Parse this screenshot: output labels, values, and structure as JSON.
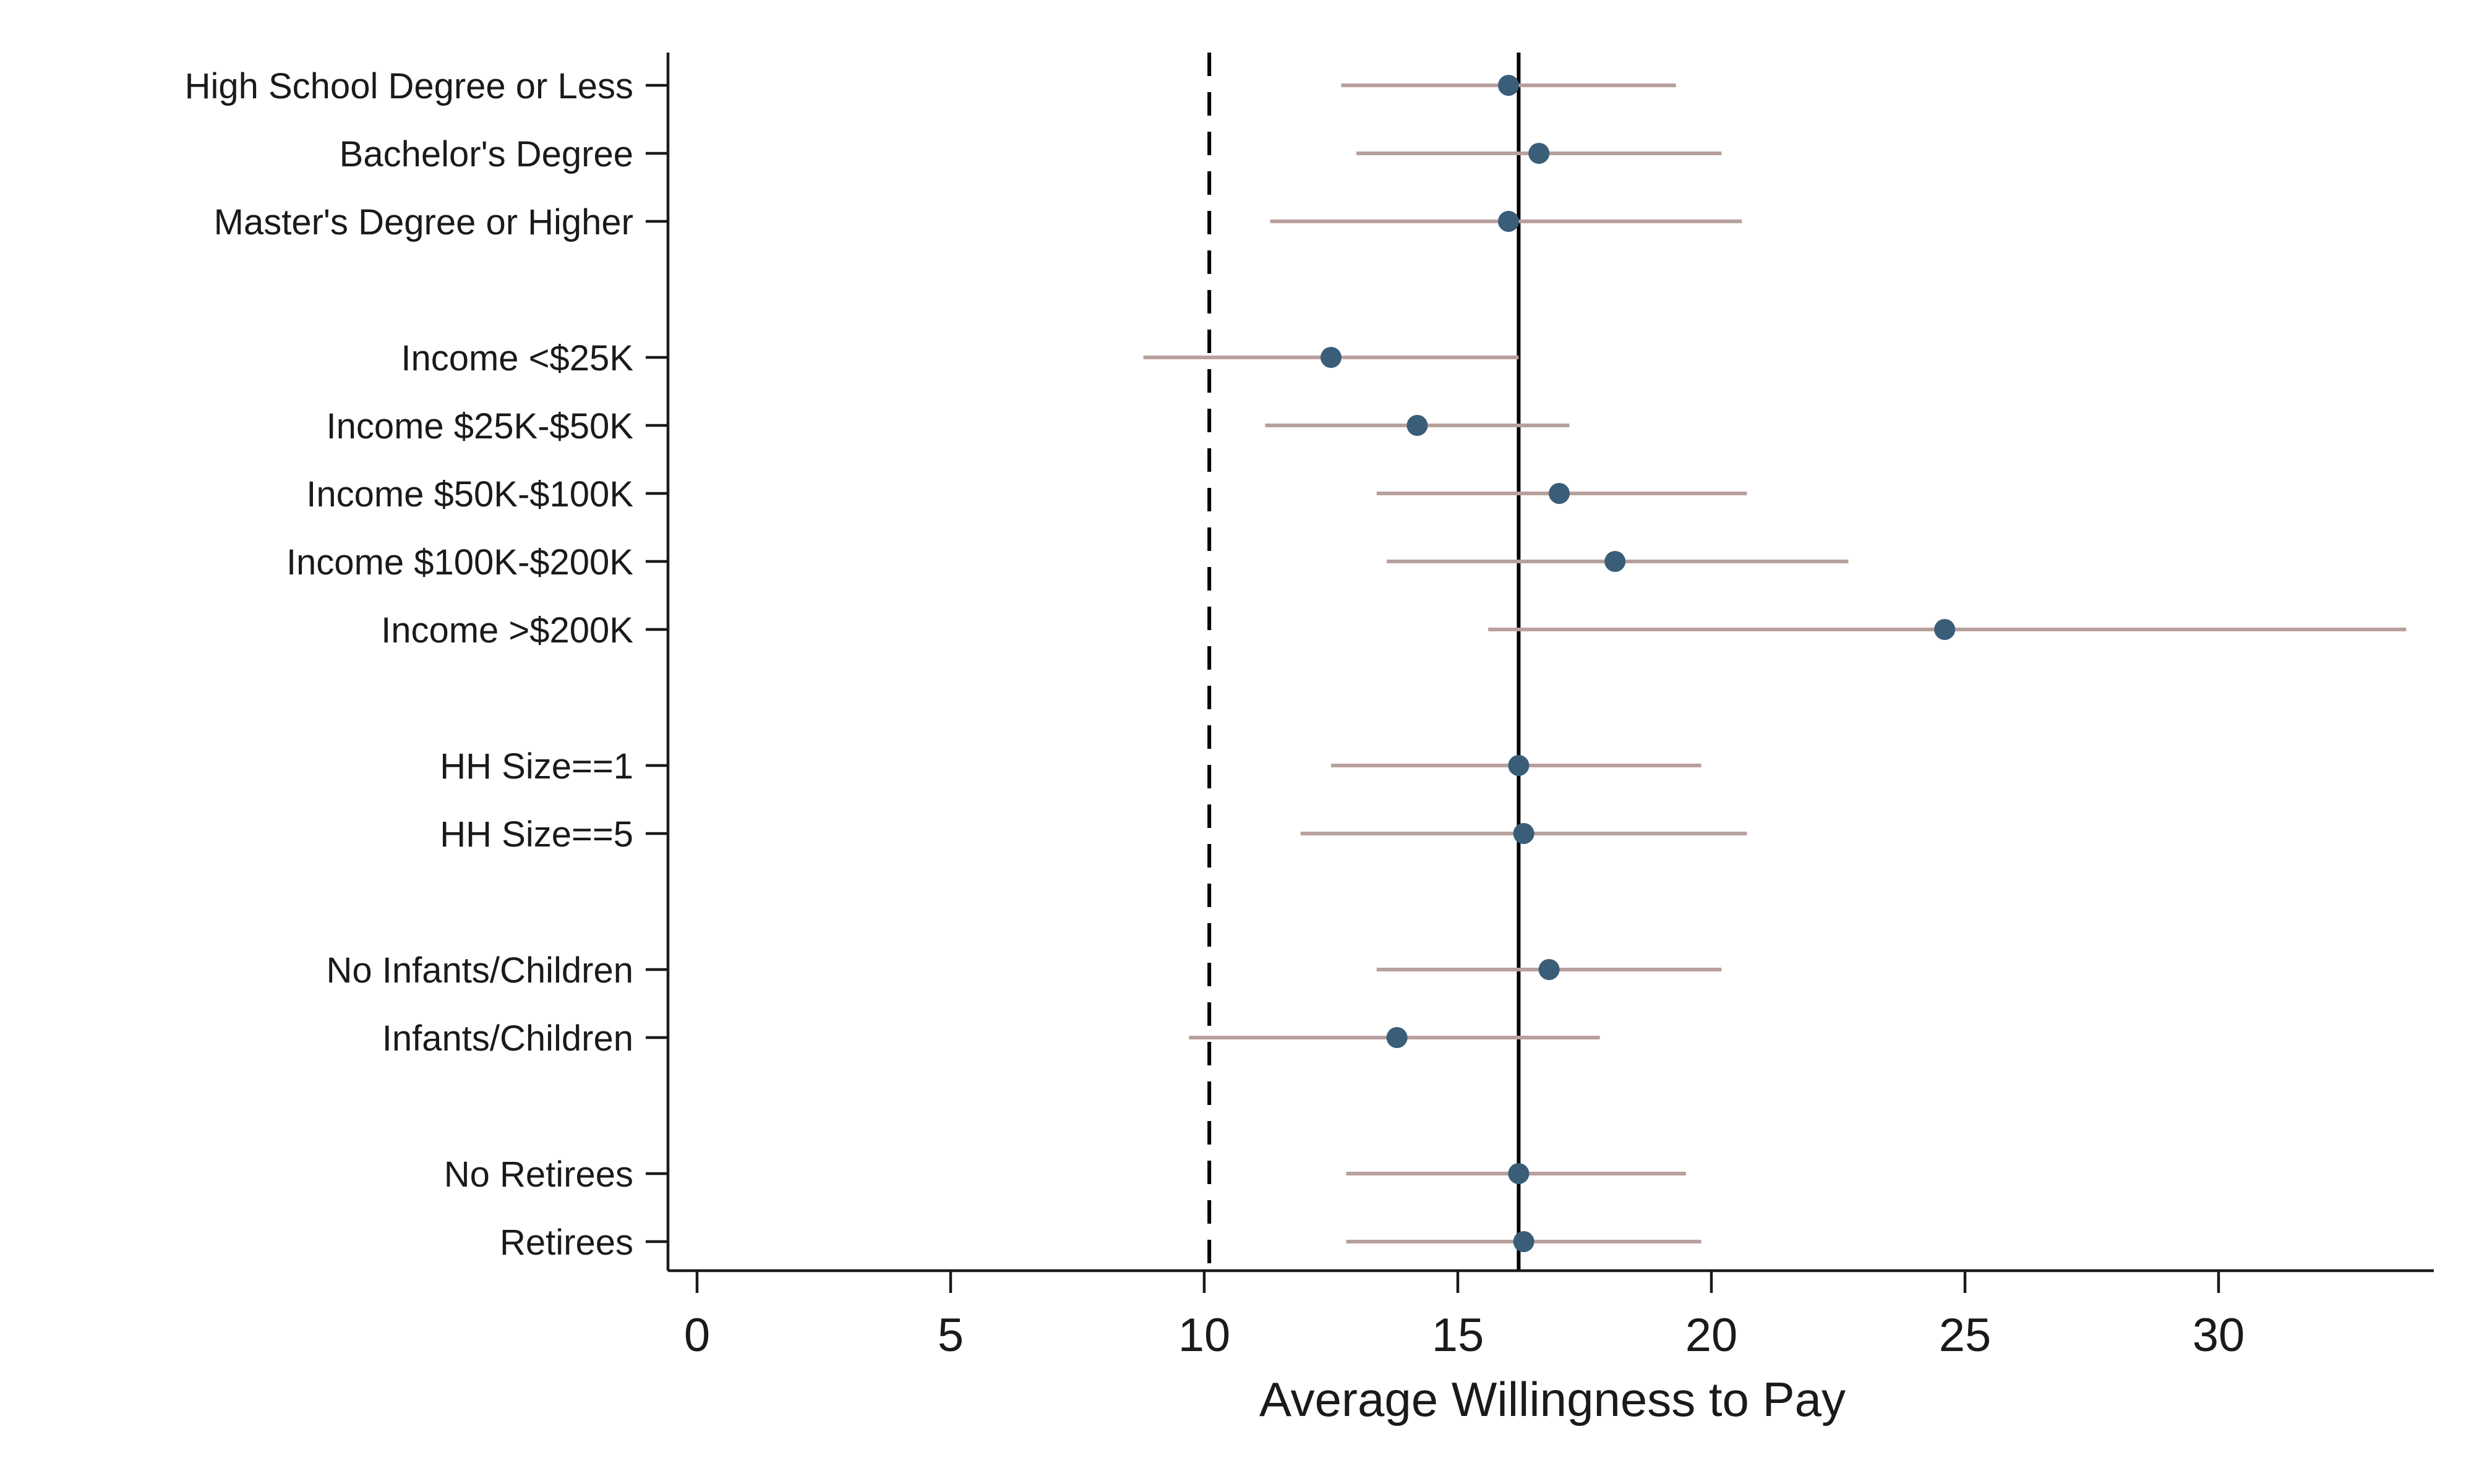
{
  "chart_data": {
    "type": "scatter",
    "subtype": "coefficient-plot-with-confidence-intervals",
    "xlabel": "Average Willingness to Pay",
    "ylabel": "",
    "xlim": [
      -0.6,
      34
    ],
    "x_ticks": [
      0,
      5,
      10,
      15,
      20,
      25,
      30
    ],
    "grid": false,
    "legend": "none",
    "colors": {
      "point": "#3a5d78",
      "interval": "#b8a09d",
      "reference": "#000000"
    },
    "reference_lines": [
      {
        "style": "dashed",
        "x": 10.1
      },
      {
        "style": "solid",
        "x": 16.2
      }
    ],
    "rows": [
      {
        "label": "High School Degree or Less",
        "value": 16.0,
        "lo": 12.7,
        "hi": 19.3
      },
      {
        "label": "Bachelor's Degree",
        "value": 16.6,
        "lo": 13.0,
        "hi": 20.2
      },
      {
        "label": "Master's Degree or Higher",
        "value": 16.0,
        "lo": 11.3,
        "hi": 20.6
      },
      {
        "label": "",
        "gap": true
      },
      {
        "label": "Income <$25K",
        "value": 12.5,
        "lo": 8.8,
        "hi": 16.2
      },
      {
        "label": "Income $25K-$50K",
        "value": 14.2,
        "lo": 11.2,
        "hi": 17.2
      },
      {
        "label": "Income $50K-$100K",
        "value": 17.0,
        "lo": 13.4,
        "hi": 20.7
      },
      {
        "label": "Income $100K-$200K",
        "value": 18.1,
        "lo": 13.6,
        "hi": 22.7
      },
      {
        "label": "Income >$200K",
        "value": 24.6,
        "lo": 15.6,
        "hi": 33.7
      },
      {
        "label": "",
        "gap": true
      },
      {
        "label": "HH Size==1",
        "value": 16.2,
        "lo": 12.5,
        "hi": 19.8
      },
      {
        "label": "HH Size==5",
        "value": 16.3,
        "lo": 11.9,
        "hi": 20.7
      },
      {
        "label": "",
        "gap": true
      },
      {
        "label": "No Infants/Children",
        "value": 16.8,
        "lo": 13.4,
        "hi": 20.2
      },
      {
        "label": "Infants/Children",
        "value": 13.8,
        "lo": 9.7,
        "hi": 17.8
      },
      {
        "label": "",
        "gap": true
      },
      {
        "label": "No Retirees",
        "value": 16.2,
        "lo": 12.8,
        "hi": 19.5
      },
      {
        "label": "Retirees",
        "value": 16.3,
        "lo": 12.8,
        "hi": 19.8
      }
    ]
  }
}
